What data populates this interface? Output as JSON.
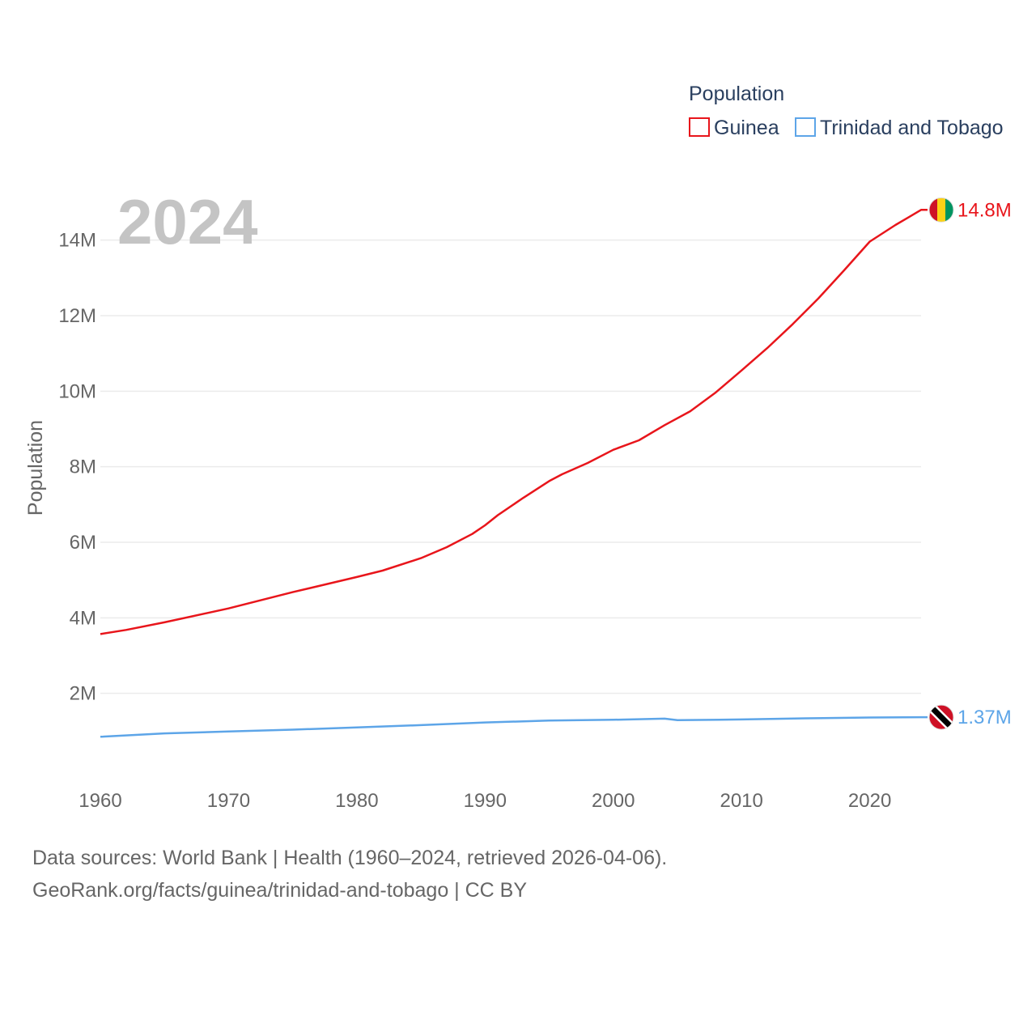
{
  "chart_data": {
    "type": "line",
    "big_year": "2024",
    "ylabel": "Population",
    "xlim": [
      1960,
      2024
    ],
    "ylim": [
      0,
      15000000
    ],
    "x_ticks": [
      1960,
      1970,
      1980,
      1990,
      2000,
      2010,
      2020
    ],
    "x_tick_labels": [
      "1960",
      "1970",
      "1980",
      "1990",
      "2000",
      "2010",
      "2020"
    ],
    "y_ticks": [
      2000000,
      4000000,
      6000000,
      8000000,
      10000000,
      12000000,
      14000000
    ],
    "y_tick_labels": [
      "2M",
      "4M",
      "6M",
      "8M",
      "10M",
      "12M",
      "14M"
    ],
    "legend": {
      "title": "Population",
      "position": "top-right"
    },
    "series": [
      {
        "name": "Guinea",
        "color": "#e8151b",
        "end_label": "14.8M",
        "flag": "guinea-flag",
        "x": [
          1960,
          1962,
          1965,
          1970,
          1975,
          1980,
          1982,
          1985,
          1987,
          1989,
          1990,
          1991,
          1993,
          1995,
          1996,
          1998,
          2000,
          2002,
          2004,
          2006,
          2008,
          2010,
          2012,
          2014,
          2016,
          2018,
          2020,
          2022,
          2023,
          2024
        ],
        "values": [
          3570000,
          3680000,
          3880000,
          4250000,
          4680000,
          5080000,
          5250000,
          5580000,
          5870000,
          6220000,
          6450000,
          6720000,
          7180000,
          7620000,
          7800000,
          8100000,
          8450000,
          8700000,
          9100000,
          9470000,
          9970000,
          10550000,
          11140000,
          11780000,
          12460000,
          13200000,
          13960000,
          14400000,
          14600000,
          14800000
        ]
      },
      {
        "name": "Trinidad and Tobago",
        "color": "#5da5e8",
        "end_label": "1.37M",
        "flag": "trinidad-and-tobago-flag",
        "x": [
          1960,
          1965,
          1970,
          1975,
          1980,
          1985,
          1990,
          1995,
          2000,
          2004,
          2005,
          2010,
          2015,
          2020,
          2024
        ],
        "values": [
          850000,
          940000,
          990000,
          1040000,
          1100000,
          1160000,
          1230000,
          1280000,
          1300000,
          1330000,
          1290000,
          1310000,
          1340000,
          1360000,
          1370000
        ]
      }
    ]
  },
  "footer": {
    "line1": "Data sources: World Bank | Health (1960–2024, retrieved 2026-04-06).",
    "line2": "GeoRank.org/facts/guinea/trinidad-and-tobago | CC BY"
  }
}
